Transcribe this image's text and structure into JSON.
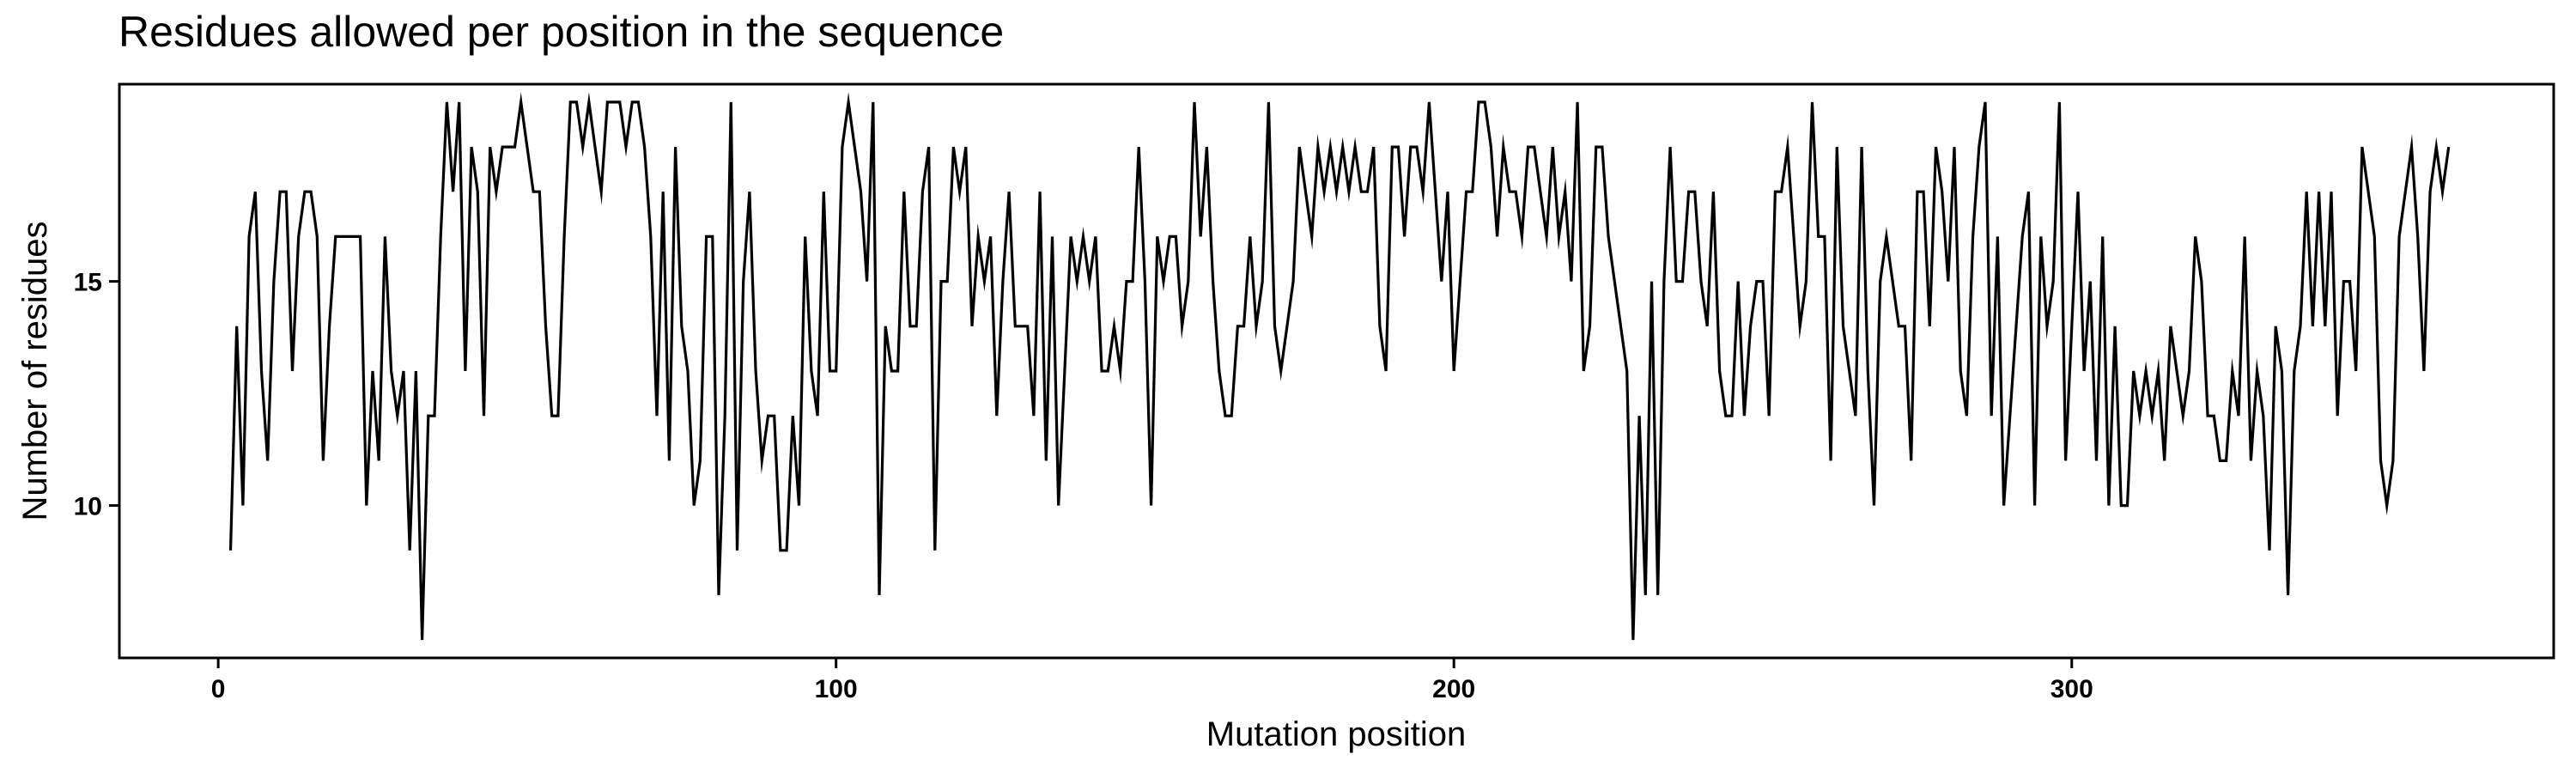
{
  "chart_data": {
    "type": "line",
    "title": "Residues allowed per position in the sequence",
    "xlabel": "Mutation position",
    "ylabel": "Number of residues",
    "xlim": [
      -16,
      378
    ],
    "ylim": [
      6.6,
      19.4
    ],
    "xticks": [
      0,
      100,
      200,
      300
    ],
    "yticks": [
      10,
      15
    ],
    "grid": false,
    "legend": "none",
    "line_color": "#000000",
    "series": [
      {
        "x": [
          2,
          3,
          4,
          5,
          6,
          7,
          8,
          9,
          10,
          11,
          12,
          13,
          14,
          15,
          16,
          17,
          18,
          19,
          20,
          21,
          22,
          23,
          24,
          25,
          26,
          27,
          28,
          29,
          30,
          31,
          32,
          33,
          34,
          35,
          36,
          37,
          38,
          39,
          40,
          41,
          42,
          43,
          44,
          45,
          46,
          47,
          48,
          49,
          50,
          51,
          52,
          53,
          54,
          55,
          56,
          57,
          58,
          59,
          60,
          61,
          62,
          63,
          64,
          65,
          66,
          67,
          68,
          69,
          70,
          71,
          72,
          73,
          74,
          75,
          76,
          77,
          78,
          79,
          80,
          81,
          82,
          83,
          84,
          85,
          86,
          87,
          88,
          89,
          90,
          91,
          92,
          93,
          94,
          95,
          96,
          97,
          98,
          99,
          100,
          101,
          102,
          103,
          104,
          105,
          106,
          107,
          108,
          109,
          110,
          111,
          112,
          113,
          114,
          115,
          116,
          117,
          118,
          119,
          120,
          121,
          122,
          123,
          124,
          125,
          126,
          127,
          128,
          129,
          130,
          131,
          132,
          133,
          134,
          135,
          136,
          137,
          138,
          139,
          140,
          141,
          142,
          143,
          144,
          145,
          146,
          147,
          148,
          149,
          150,
          151,
          152,
          153,
          154,
          155,
          156,
          157,
          158,
          159,
          160,
          161,
          162,
          163,
          164,
          165,
          166,
          167,
          168,
          169,
          170,
          171,
          172,
          173,
          174,
          175,
          176,
          177,
          178,
          179,
          180,
          181,
          182,
          183,
          184,
          185,
          186,
          187,
          188,
          189,
          190,
          191,
          192,
          193,
          194,
          195,
          196,
          197,
          198,
          199,
          200,
          201,
          202,
          203,
          204,
          205,
          206,
          207,
          208,
          209,
          210,
          211,
          212,
          213,
          214,
          215,
          216,
          217,
          218,
          219,
          220,
          221,
          222,
          223,
          224,
          225,
          226,
          227,
          228,
          229,
          230,
          231,
          232,
          233,
          234,
          235,
          236,
          237,
          238,
          239,
          240,
          241,
          242,
          243,
          244,
          245,
          246,
          247,
          248,
          249,
          250,
          251,
          252,
          253,
          254,
          255,
          256,
          257,
          258,
          259,
          260,
          261,
          262,
          263,
          264,
          265,
          266,
          267,
          268,
          269,
          270,
          271,
          272,
          273,
          274,
          275,
          276,
          277,
          278,
          279,
          280,
          281,
          282,
          283,
          284,
          285,
          286,
          287,
          288,
          289,
          290,
          291,
          292,
          293,
          294,
          295,
          296,
          297,
          298,
          299,
          300,
          301,
          302,
          303,
          304,
          305,
          306,
          307,
          308,
          309,
          310,
          311,
          312,
          313,
          314,
          315,
          316,
          317,
          318,
          319,
          320,
          321,
          322,
          323,
          324,
          325,
          326,
          327,
          328,
          329,
          330,
          331,
          332,
          333,
          334,
          335,
          336,
          337,
          338,
          339,
          340,
          341,
          342,
          343,
          344,
          345,
          346,
          347,
          348,
          349,
          350,
          351,
          352,
          353,
          354,
          355,
          356,
          357,
          358,
          359,
          360,
          361
        ],
        "y": [
          9,
          14,
          10,
          16,
          17,
          13,
          11,
          15,
          17,
          17,
          13,
          16,
          17,
          17,
          16,
          11,
          14,
          16,
          16,
          16,
          16,
          16,
          10,
          13,
          11,
          16,
          13,
          12,
          13,
          9,
          13,
          7,
          12,
          12,
          16,
          19,
          17,
          19,
          13,
          18,
          17,
          12,
          18,
          17,
          18,
          18,
          18,
          19,
          18,
          17,
          17,
          14,
          12,
          12,
          16,
          19,
          19,
          18,
          19,
          18,
          17,
          19,
          19,
          19,
          18,
          19,
          19,
          18,
          16,
          12,
          17,
          11,
          18,
          14,
          13,
          10,
          11,
          16,
          16,
          8,
          12,
          19,
          9,
          15,
          17,
          13,
          11,
          12,
          12,
          9,
          9,
          12,
          10,
          16,
          13,
          12,
          17,
          13,
          13,
          18,
          19,
          18,
          17,
          15,
          19,
          8,
          14,
          13,
          13,
          17,
          14,
          14,
          17,
          18,
          9,
          15,
          15,
          18,
          17,
          18,
          14,
          16,
          15,
          16,
          12,
          15,
          17,
          14,
          14,
          14,
          12,
          17,
          11,
          16,
          10,
          13,
          16,
          15,
          16,
          15,
          16,
          13,
          13,
          14,
          13,
          15,
          15,
          18,
          15,
          10,
          16,
          15,
          16,
          16,
          14,
          15,
          19,
          16,
          18,
          15,
          13,
          12,
          12,
          14,
          14,
          16,
          14,
          15,
          19,
          14,
          13,
          14,
          15,
          18,
          17,
          16,
          18,
          17,
          18,
          17,
          18,
          17,
          18,
          17,
          17,
          18,
          14,
          13,
          18,
          18,
          16,
          18,
          18,
          17,
          19,
          17,
          15,
          17,
          13,
          15,
          17,
          17,
          19,
          19,
          18,
          16,
          18,
          17,
          17,
          16,
          18,
          18,
          17,
          16,
          18,
          16,
          17,
          15,
          19,
          13,
          14,
          18,
          18,
          16,
          15,
          14,
          13,
          7,
          12,
          8,
          15,
          8,
          15,
          18,
          15,
          15,
          17,
          17,
          15,
          14,
          17,
          13,
          12,
          12,
          15,
          12,
          14,
          15,
          15,
          12,
          17,
          17,
          18,
          16,
          14,
          15,
          19,
          16,
          16,
          11,
          18,
          14,
          13,
          12,
          18,
          13,
          10,
          15,
          16,
          15,
          14,
          14,
          11,
          17,
          17,
          14,
          18,
          17,
          15,
          18,
          13,
          12,
          16,
          18,
          19,
          12,
          16,
          10,
          12,
          14,
          16,
          17,
          10,
          16,
          14,
          15,
          19,
          11,
          14,
          17,
          13,
          15,
          11,
          16,
          10,
          14,
          10,
          10,
          13,
          12,
          13,
          12,
          13,
          11,
          14,
          13,
          12,
          13,
          16,
          15,
          12,
          12,
          11,
          11,
          13,
          12,
          16,
          11,
          13,
          12,
          9,
          14,
          13,
          8,
          13,
          14,
          17,
          14,
          17,
          14,
          17,
          12,
          15,
          15,
          13,
          18,
          17,
          16,
          11,
          10,
          11,
          16,
          17,
          18,
          16,
          13,
          17,
          18,
          17,
          18
        ]
      }
    ]
  }
}
